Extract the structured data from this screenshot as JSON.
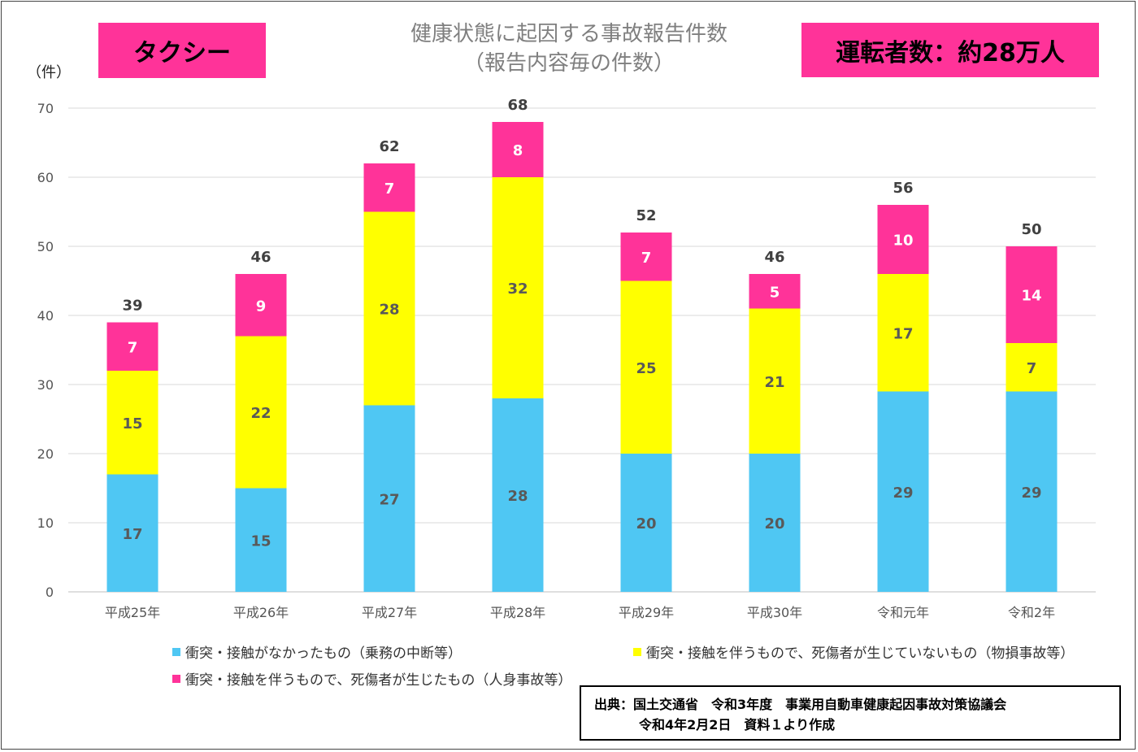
{
  "header": {
    "badge_left": "タクシー",
    "badge_right": "運転者数：約28万人",
    "title_line1": "健康状態に起因する事故報告件数",
    "title_line2": "（報告内容毎の件数）",
    "unit_label": "（件）"
  },
  "chart_data": {
    "type": "bar",
    "stacked": true,
    "categories": [
      "平成25年",
      "平成26年",
      "平成27年",
      "平成28年",
      "平成29年",
      "平成30年",
      "令和元年",
      "令和2年"
    ],
    "series": [
      {
        "name": "衝突・接触がなかったもの（乗務の中断等）",
        "color": "#4fc7f3",
        "values": [
          17,
          15,
          27,
          28,
          20,
          20,
          29,
          29
        ]
      },
      {
        "name": "衝突・接触を伴うもので、死傷者が生じていないもの（物損事故等）",
        "color": "#ffff00",
        "values": [
          15,
          22,
          28,
          32,
          25,
          21,
          17,
          7
        ]
      },
      {
        "name": "衝突・接触を伴うもので、死傷者が生じたもの（人身事故等）",
        "color": "#ff3399",
        "values": [
          7,
          9,
          7,
          8,
          7,
          5,
          10,
          14
        ]
      }
    ],
    "totals": [
      39,
      46,
      62,
      68,
      52,
      46,
      56,
      50
    ],
    "ylim": [
      0,
      70
    ],
    "yticks": [
      0,
      10,
      20,
      30,
      40,
      50,
      60,
      70
    ],
    "ylabel": "（件）",
    "grid": true,
    "legend_position": "bottom"
  },
  "source": {
    "line1": "出典：国土交通省　令和3年度　事業用自動車健康起因事故対策協議会",
    "line2": "令和4年2月2日　資料１より作成"
  }
}
